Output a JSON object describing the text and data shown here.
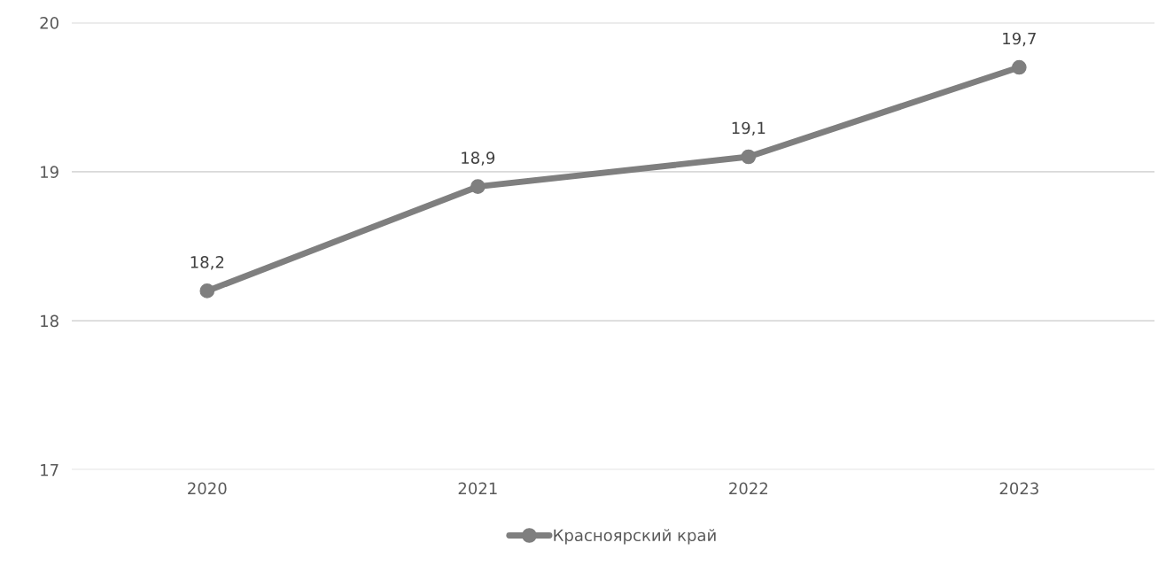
{
  "chart_data": {
    "type": "line",
    "categories": [
      "2020",
      "2021",
      "2022",
      "2023"
    ],
    "series": [
      {
        "name": "Красноярский край",
        "color": "#7f7f7f",
        "values": [
          18.2,
          18.9,
          19.1,
          19.7
        ],
        "value_labels": [
          "18,2",
          "18,9",
          "19,1",
          "19,7"
        ]
      }
    ],
    "ylim": [
      17,
      20
    ],
    "yticks": [
      17,
      18,
      19,
      20
    ],
    "grid": "y",
    "legend": "bottom",
    "marker": "circle",
    "line_style": "solid"
  }
}
